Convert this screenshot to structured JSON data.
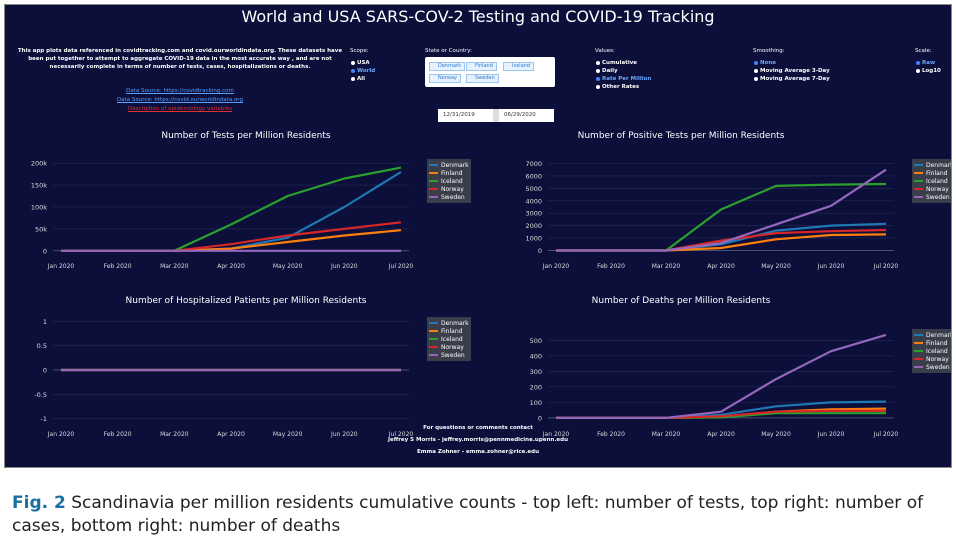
{
  "header": {
    "title": "World and USA SARS-COV-2 Testing and COVID-19 Tracking"
  },
  "description": {
    "text": "This app plots data referenced in covidtracking.com and covid.ourworldindata.org. These datasets have been put together to attempt to aggregate COVID-19 data in the most accurate way , and are not necessarily complete in terms of number of tests, cases, hospitalizations or deaths.",
    "links": [
      "Data Source: https://covidtracking.com",
      "Data Source: https://covid.ourworldindata.org",
      "Description of epidemiology variables"
    ]
  },
  "controls": {
    "scope": {
      "label": "Scope:",
      "options": [
        "USA",
        "World",
        "All"
      ],
      "selected": 1
    },
    "state": {
      "label": "State or Country:",
      "tags": [
        "Denmark",
        "Finland",
        "Iceland",
        "Norway",
        "Sweden"
      ]
    },
    "values": {
      "label": "Values:",
      "options": [
        "Cumulative",
        "Daily",
        "Rate Per Million",
        "Other Rates"
      ],
      "selected": 2
    },
    "smoothing": {
      "label": "Smoothing:",
      "options": [
        "None",
        "Moving Average 3-Day",
        "Moving Average 7-Day"
      ],
      "selected": 0
    },
    "scale": {
      "label": "Scale:",
      "options": [
        "Raw",
        "Log10"
      ],
      "selected": 0
    },
    "date_range": {
      "start": "12/31/2019",
      "end": "06/29/2020"
    }
  },
  "chart_data": [
    {
      "type": "line",
      "title": "Number of Tests per Million Residents",
      "categories": [
        "Jan 2020",
        "Feb 2020",
        "Mar 2020",
        "Apr 2020",
        "May 2020",
        "Jun 2020",
        "Jul 2020"
      ],
      "ylim": [
        -5000,
        205000
      ],
      "yticks": [
        0,
        {
          "value": 50000,
          "label": "50k"
        },
        {
          "value": 100000,
          "label": "100k"
        },
        {
          "value": 150000,
          "label": "150k"
        },
        {
          "value": 200000,
          "label": "200k"
        }
      ],
      "grid": true,
      "legend": "right",
      "series": [
        {
          "name": "Denmark",
          "color": "#1f77b4",
          "values": [
            0,
            0,
            0,
            5000,
            30000,
            100000,
            180000
          ]
        },
        {
          "name": "Finland",
          "color": "#ff7f0e",
          "values": [
            0,
            0,
            0,
            5000,
            20000,
            35000,
            47000
          ]
        },
        {
          "name": "Iceland",
          "color": "#2ca02c",
          "values": [
            0,
            0,
            0,
            60000,
            125000,
            165000,
            190000
          ]
        },
        {
          "name": "Norway",
          "color": "#d62728",
          "values": [
            0,
            0,
            0,
            15000,
            35000,
            50000,
            65000
          ]
        },
        {
          "name": "Sweden",
          "color": "#9467bd",
          "values": [
            0,
            0,
            0,
            0,
            0,
            0,
            0
          ]
        }
      ]
    },
    {
      "type": "line",
      "title": "Number of Positive Tests per Million Residents",
      "categories": [
        "Jan 2020",
        "Feb 2020",
        "Mar 2020",
        "Apr 2020",
        "May 2020",
        "Jun 2020",
        "Jul 2020"
      ],
      "ylim": [
        -200,
        7200
      ],
      "yticks": [
        0,
        1000,
        2000,
        3000,
        4000,
        5000,
        6000,
        7000
      ],
      "grid": true,
      "legend": "right",
      "series": [
        {
          "name": "Denmark",
          "color": "#1f77b4",
          "values": [
            0,
            0,
            0,
            500,
            1600,
            2000,
            2150
          ]
        },
        {
          "name": "Finland",
          "color": "#ff7f0e",
          "values": [
            0,
            0,
            0,
            200,
            900,
            1250,
            1300
          ]
        },
        {
          "name": "Iceland",
          "color": "#2ca02c",
          "values": [
            0,
            0,
            0,
            3300,
            5200,
            5300,
            5350
          ]
        },
        {
          "name": "Norway",
          "color": "#d62728",
          "values": [
            0,
            0,
            0,
            800,
            1400,
            1550,
            1650
          ]
        },
        {
          "name": "Sweden",
          "color": "#9467bd",
          "values": [
            0,
            0,
            0,
            600,
            2100,
            3600,
            6500
          ]
        }
      ]
    },
    {
      "type": "line",
      "title": "Number of Hospitalized Patients per Million Residents",
      "categories": [
        "Jan 2020",
        "Feb 2020",
        "Mar 2020",
        "Apr 2020",
        "May 2020",
        "Jun 2020",
        "Jul 2020"
      ],
      "ylim": [
        -1.05,
        1.05
      ],
      "yticks": [
        -1,
        -0.5,
        0,
        0.5,
        1
      ],
      "grid": true,
      "legend": "right",
      "series": [
        {
          "name": "Denmark",
          "color": "#1f77b4",
          "values": [
            0,
            0,
            0,
            0,
            0,
            0,
            0
          ]
        },
        {
          "name": "Finland",
          "color": "#ff7f0e",
          "values": [
            0,
            0,
            0,
            0,
            0,
            0,
            0
          ]
        },
        {
          "name": "Iceland",
          "color": "#2ca02c",
          "values": [
            0,
            0,
            0,
            0,
            0,
            0,
            0
          ]
        },
        {
          "name": "Norway",
          "color": "#d62728",
          "values": [
            0,
            0,
            0,
            0,
            0,
            0,
            0
          ]
        },
        {
          "name": "Sweden",
          "color": "#9467bd",
          "values": [
            0,
            0,
            0,
            0,
            0,
            0,
            0
          ]
        }
      ]
    },
    {
      "type": "line",
      "title": "Number of Deaths per Million Residents",
      "categories": [
        "Jan 2020",
        "Feb 2020",
        "Mar 2020",
        "Apr 2020",
        "May 2020",
        "Jun 2020",
        "Jul 2020"
      ],
      "ylim": [
        -20,
        560
      ],
      "yticks": [
        0,
        100,
        200,
        300,
        400,
        500
      ],
      "grid": true,
      "legend": "right",
      "series": [
        {
          "name": "Denmark",
          "color": "#1f77b4",
          "values": [
            0,
            0,
            0,
            20,
            75,
            100,
            105
          ]
        },
        {
          "name": "Finland",
          "color": "#ff7f0e",
          "values": [
            0,
            0,
            0,
            5,
            40,
            55,
            60
          ]
        },
        {
          "name": "Iceland",
          "color": "#2ca02c",
          "values": [
            0,
            0,
            0,
            3,
            30,
            30,
            30
          ]
        },
        {
          "name": "Norway",
          "color": "#d62728",
          "values": [
            0,
            0,
            0,
            10,
            40,
            45,
            45
          ]
        },
        {
          "name": "Sweden",
          "color": "#9467bd",
          "values": [
            0,
            0,
            0,
            40,
            250,
            430,
            535
          ]
        }
      ]
    }
  ],
  "footer": {
    "lines": [
      "For questions or comments contact",
      "Jeffrey S Morris - jeffrey.morris@pennmedicine.upenn.edu",
      "Emma Zohner - emma.zohner@rice.edu"
    ]
  },
  "caption": {
    "label": "Fig. 2",
    "text": "Scandinavia per million residents cumulative counts - top left: number of tests, top right: number of cases, bottom right: number of deaths"
  }
}
